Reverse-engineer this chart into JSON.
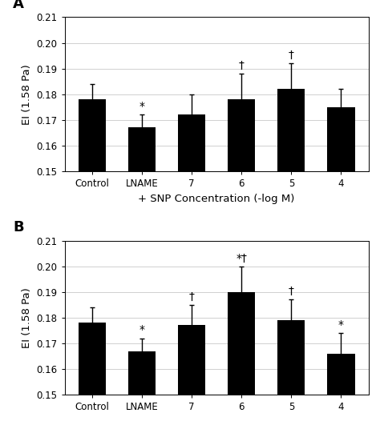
{
  "panel_A": {
    "label": "A",
    "categories": [
      "Control",
      "LNAME",
      "7",
      "6",
      "5",
      "4"
    ],
    "values": [
      0.178,
      0.167,
      0.172,
      0.178,
      0.182,
      0.175
    ],
    "errors": [
      0.006,
      0.005,
      0.008,
      0.01,
      0.01,
      0.007
    ],
    "annotations": [
      "",
      "*",
      "",
      "†",
      "†",
      ""
    ],
    "xlabel": "+ SNP Concentration (-log M)"
  },
  "panel_B": {
    "label": "B",
    "categories": [
      "Control",
      "LNAME",
      "7",
      "6",
      "5",
      "4"
    ],
    "values": [
      0.178,
      0.167,
      0.177,
      0.19,
      0.179,
      0.166
    ],
    "errors": [
      0.006,
      0.005,
      0.008,
      0.01,
      0.008,
      0.008
    ],
    "annotations": [
      "",
      "*",
      "†",
      "*†",
      "†",
      "*"
    ],
    "xlabel": ""
  },
  "ylabel": "EI (1.58 Pa)",
  "ylim": [
    0.15,
    0.21
  ],
  "ybase": 0.15,
  "yticks": [
    0.15,
    0.16,
    0.17,
    0.18,
    0.19,
    0.2,
    0.21
  ],
  "bar_color": "#000000",
  "bar_width": 0.55,
  "error_color": "#000000",
  "background_color": "#ffffff",
  "grid_color": "#d0d0d0",
  "tick_fontsize": 8.5,
  "label_fontsize": 9.5,
  "annotation_fontsize": 10,
  "panel_label_fontsize": 13
}
